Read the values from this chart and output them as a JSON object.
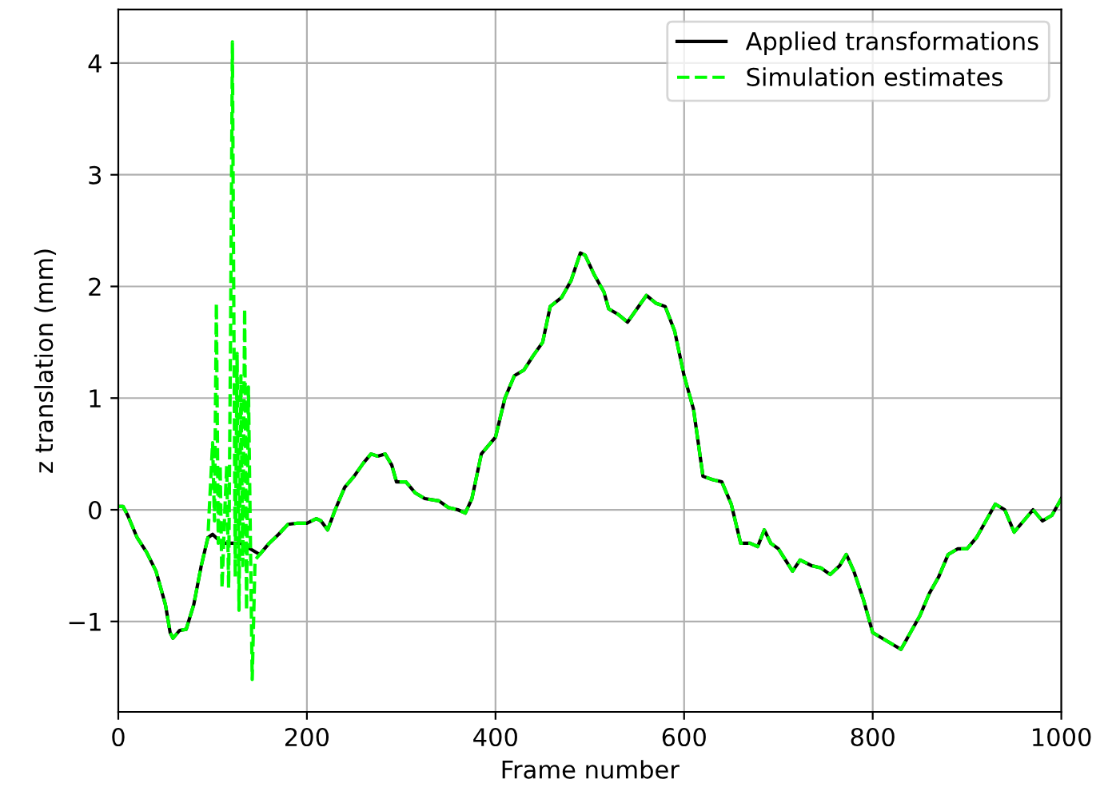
{
  "chart_data": {
    "type": "line",
    "xlabel": "Frame number",
    "ylabel": "z translation (mm)",
    "xlim": [
      0,
      1000
    ],
    "xticks": [
      0,
      200,
      400,
      600,
      800,
      1000
    ],
    "ylim": [
      -1.81,
      4.48
    ],
    "yticks": [
      {
        "value": -1,
        "label": "−1"
      },
      0,
      1,
      2,
      3,
      4
    ],
    "grid": true,
    "legend": "top right",
    "series": [
      {
        "name": "Applied transformations",
        "color": "#000000",
        "line_style": "solid",
        "x": [
          0,
          5,
          10,
          20,
          30,
          40,
          50,
          55,
          58,
          65,
          72,
          80,
          88,
          95,
          100,
          110,
          120,
          130,
          140,
          150,
          160,
          170,
          180,
          190,
          200,
          210,
          215,
          222,
          230,
          240,
          250,
          260,
          268,
          275,
          283,
          290,
          295,
          305,
          315,
          325,
          340,
          350,
          360,
          368,
          375,
          385,
          400,
          410,
          420,
          430,
          440,
          450,
          458,
          470,
          480,
          490,
          495,
          505,
          515,
          520,
          530,
          540,
          550,
          560,
          570,
          580,
          590,
          600,
          610,
          620,
          630,
          640,
          650,
          660,
          670,
          678,
          685,
          692,
          700,
          715,
          723,
          735,
          745,
          755,
          765,
          772,
          780,
          790,
          800,
          810,
          820,
          830,
          840,
          850,
          860,
          870,
          880,
          890,
          900,
          910,
          920,
          930,
          940,
          950,
          960,
          970,
          980,
          990,
          1000
        ],
        "values": [
          0.03,
          0.03,
          -0.05,
          -0.25,
          -0.38,
          -0.55,
          -0.85,
          -1.1,
          -1.15,
          -1.08,
          -1.07,
          -0.85,
          -0.5,
          -0.25,
          -0.22,
          -0.3,
          -0.3,
          -0.3,
          -0.35,
          -0.4,
          -0.3,
          -0.22,
          -0.13,
          -0.12,
          -0.12,
          -0.08,
          -0.1,
          -0.18,
          0.0,
          0.2,
          0.3,
          0.42,
          0.5,
          0.48,
          0.5,
          0.4,
          0.25,
          0.25,
          0.15,
          0.1,
          0.08,
          0.02,
          0.0,
          -0.03,
          0.1,
          0.5,
          0.65,
          1.0,
          1.2,
          1.25,
          1.38,
          1.5,
          1.82,
          1.9,
          2.05,
          2.3,
          2.28,
          2.1,
          1.95,
          1.8,
          1.75,
          1.68,
          1.8,
          1.92,
          1.85,
          1.82,
          1.6,
          1.2,
          0.9,
          0.3,
          0.27,
          0.25,
          0.05,
          -0.3,
          -0.3,
          -0.33,
          -0.18,
          -0.3,
          -0.35,
          -0.55,
          -0.45,
          -0.5,
          -0.52,
          -0.58,
          -0.5,
          -0.4,
          -0.55,
          -0.8,
          -1.1,
          -1.15,
          -1.2,
          -1.25,
          -1.1,
          -0.95,
          -0.75,
          -0.6,
          -0.4,
          -0.35,
          -0.35,
          -0.25,
          -0.1,
          0.05,
          0.0,
          -0.2,
          -0.1,
          0.0,
          -0.1,
          -0.05,
          0.1
        ]
      },
      {
        "name": "Simulation estimates",
        "color": "#00ff00",
        "line_style": "dashed",
        "x": [
          0,
          5,
          10,
          20,
          30,
          40,
          50,
          55,
          58,
          65,
          72,
          80,
          88,
          95,
          100,
          102,
          104,
          106,
          108,
          110,
          113,
          115,
          117,
          119,
          121,
          124,
          126,
          128,
          130,
          132,
          134,
          136,
          138,
          140,
          142,
          145,
          150,
          160,
          170,
          180,
          190,
          200,
          210,
          215,
          222,
          230,
          240,
          250,
          260,
          268,
          275,
          283,
          290,
          295,
          305,
          315,
          325,
          340,
          350,
          360,
          368,
          375,
          385,
          400,
          410,
          420,
          430,
          440,
          450,
          458,
          470,
          480,
          490,
          495,
          505,
          515,
          520,
          530,
          540,
          550,
          560,
          570,
          580,
          590,
          600,
          610,
          620,
          630,
          640,
          650,
          660,
          670,
          678,
          685,
          692,
          700,
          715,
          723,
          735,
          745,
          755,
          765,
          772,
          780,
          790,
          800,
          810,
          820,
          830,
          840,
          850,
          860,
          870,
          880,
          890,
          900,
          910,
          920,
          930,
          940,
          950,
          960,
          970,
          980,
          990,
          1000
        ],
        "values": [
          0.03,
          0.03,
          -0.05,
          -0.25,
          -0.38,
          -0.55,
          -0.85,
          -1.1,
          -1.15,
          -1.08,
          -1.07,
          -0.85,
          -0.5,
          -0.25,
          0.6,
          -0.1,
          1.85,
          -0.3,
          0.4,
          -0.7,
          0.0,
          0.4,
          -0.7,
          1.5,
          4.19,
          -0.6,
          1.4,
          -0.9,
          1.2,
          -0.5,
          1.8,
          -0.9,
          1.1,
          -0.2,
          -1.52,
          -0.45,
          -0.4,
          -0.3,
          -0.22,
          -0.13,
          -0.12,
          -0.12,
          -0.08,
          -0.1,
          -0.18,
          0.0,
          0.2,
          0.3,
          0.42,
          0.5,
          0.48,
          0.5,
          0.4,
          0.25,
          0.25,
          0.15,
          0.1,
          0.08,
          0.02,
          0.0,
          -0.03,
          0.1,
          0.5,
          0.65,
          1.0,
          1.2,
          1.25,
          1.38,
          1.5,
          1.82,
          1.9,
          2.05,
          2.3,
          2.28,
          2.1,
          1.95,
          1.8,
          1.75,
          1.68,
          1.8,
          1.92,
          1.85,
          1.82,
          1.6,
          1.2,
          0.9,
          0.3,
          0.27,
          0.25,
          0.05,
          -0.3,
          -0.3,
          -0.33,
          -0.18,
          -0.3,
          -0.35,
          -0.55,
          -0.45,
          -0.5,
          -0.52,
          -0.58,
          -0.5,
          -0.4,
          -0.55,
          -0.8,
          -1.1,
          -1.15,
          -1.2,
          -1.25,
          -1.1,
          -0.95,
          -0.75,
          -0.6,
          -0.4,
          -0.35,
          -0.35,
          -0.25,
          -0.1,
          0.05,
          0.0,
          -0.2,
          -0.1,
          0.0,
          -0.1,
          -0.05,
          0.1
        ]
      }
    ]
  }
}
